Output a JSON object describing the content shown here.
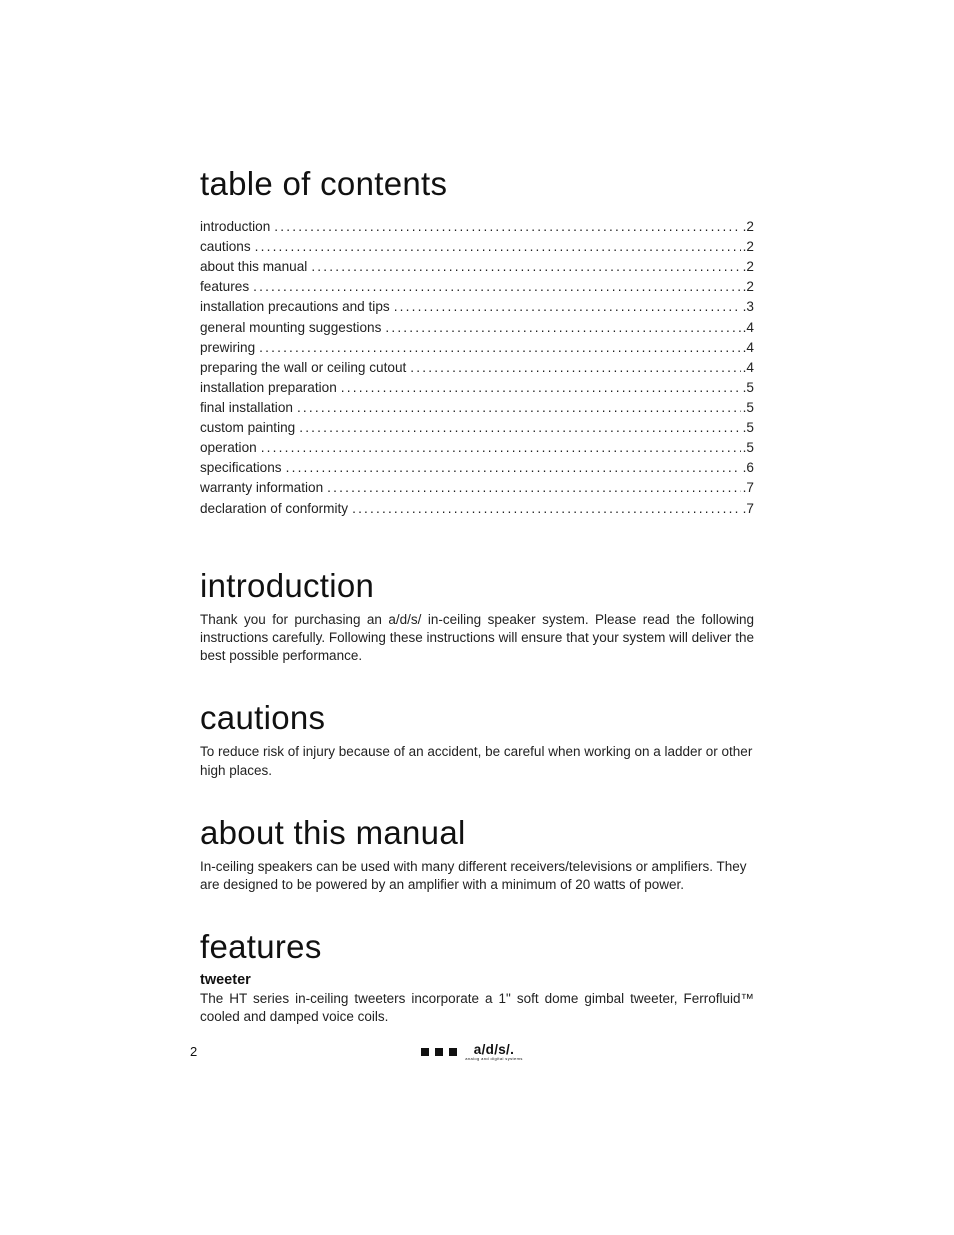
{
  "page_number": "2",
  "brand": {
    "text": "a/d/s/.",
    "sub": "analog and digital systems",
    "square_color": "#111111"
  },
  "toc": {
    "heading": "table of contents",
    "items": [
      {
        "label": "introduction",
        "page": "2"
      },
      {
        "label": "cautions",
        "page": "2"
      },
      {
        "label": "about this manual",
        "page": "2"
      },
      {
        "label": "features",
        "page": "2"
      },
      {
        "label": "installation precautions and tips",
        "page": "3"
      },
      {
        "label": "general mounting suggestions",
        "page": "4"
      },
      {
        "label": "prewiring",
        "page": "4"
      },
      {
        "label": "preparing the wall or ceiling cutout",
        "page": "4"
      },
      {
        "label": "installation preparation",
        "page": "5"
      },
      {
        "label": "final installation",
        "page": "5"
      },
      {
        "label": "custom painting",
        "page": "5"
      },
      {
        "label": "operation",
        "page": "5"
      },
      {
        "label": "specifications",
        "page": "6"
      },
      {
        "label": "warranty information",
        "page": "7"
      },
      {
        "label": "declaration of conformity",
        "page": "7"
      }
    ]
  },
  "sections": {
    "introduction": {
      "heading": "introduction",
      "body": "Thank you for purchasing an a/d/s/ in-ceiling speaker system. Please read the following instructions carefully.  Following these instructions will ensure that your system will deliver the best possible performance."
    },
    "cautions": {
      "heading": "cautions",
      "body": "To reduce risk of injury because of an accident, be careful when working on a ladder or other high places."
    },
    "about": {
      "heading": "about this manual",
      "body": "In-ceiling speakers can be used with many different receivers/televisions or amplifiers. They are designed to be powered by an amplifier with a minimum of 20 watts of power."
    },
    "features": {
      "heading": "features",
      "sub_heading": "tweeter",
      "body": "The HT series in-ceiling tweeters incorporate a 1\" soft dome gimbal tweeter, Ferrofluid™ cooled and damped voice coils."
    }
  }
}
